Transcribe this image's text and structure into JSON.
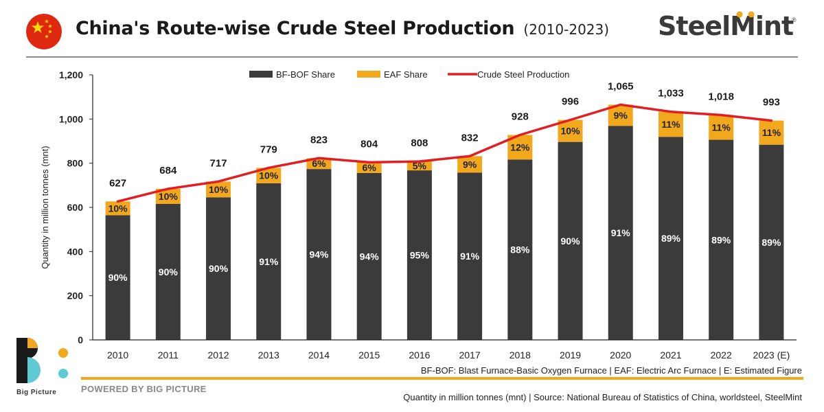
{
  "header": {
    "title": "China's Route-wise Crude Steel Production",
    "subtitle": "(2010-2023)",
    "brand": "SteelMint"
  },
  "colors": {
    "bfbof": "#3b3b3b",
    "eaf": "#f2a81d",
    "line": "#e21e25",
    "flag_red": "#de2910",
    "flag_star": "#ffde00"
  },
  "chart_data": {
    "type": "bar",
    "categories": [
      "2010",
      "2011",
      "2012",
      "2013",
      "2014",
      "2015",
      "2016",
      "2017",
      "2018",
      "2019",
      "2020",
      "2021",
      "2022",
      "2023 (E)"
    ],
    "totals": [
      627,
      684,
      717,
      779,
      823,
      804,
      808,
      832,
      928,
      996,
      1065,
      1033,
      1018,
      993
    ],
    "series": [
      {
        "name": "BF-BOF Share",
        "kind": "bar",
        "share_labels": [
          "90%",
          "90%",
          "90%",
          "91%",
          "94%",
          "94%",
          "95%",
          "91%",
          "88%",
          "90%",
          "91%",
          "89%",
          "89%",
          "89%"
        ]
      },
      {
        "name": "EAF Share",
        "kind": "bar",
        "share_labels": [
          "10%",
          "10%",
          "10%",
          "10%",
          "6%",
          "6%",
          "5%",
          "9%",
          "12%",
          "10%",
          "9%",
          "11%",
          "11%",
          "11%"
        ]
      },
      {
        "name": "Crude Steel Production",
        "kind": "line",
        "values": [
          627,
          684,
          717,
          779,
          823,
          804,
          808,
          832,
          928,
          996,
          1065,
          1033,
          1018,
          993
        ]
      }
    ],
    "total_labels": [
      "627",
      "684",
      "717",
      "779",
      "823",
      "804",
      "808",
      "832",
      "928",
      "996",
      "1,065",
      "1,033",
      "1,018",
      "993"
    ],
    "ylabel": "Quantity in million tonnes (mnt)",
    "ylim": [
      0,
      1200
    ],
    "yticks": [
      0,
      200,
      400,
      600,
      800,
      1000,
      1200
    ],
    "ytick_labels": [
      "0",
      "200",
      "400",
      "600",
      "800",
      "1,000",
      "1,200"
    ],
    "legend_position": "top-center",
    "grid": false
  },
  "footer": {
    "notes": "BF-BOF: Blast Furnace-Basic Oxygen Furnace | EAF: Electric Arc Furnace | E: Estimated Figure",
    "powered_by": "POWERED BY BIG PICTURE",
    "logo_text": "Big Picture",
    "source": "Quantity in million tonnes (mnt) | Source: National Bureau of Statistics of China, worldsteel, SteelMint"
  }
}
